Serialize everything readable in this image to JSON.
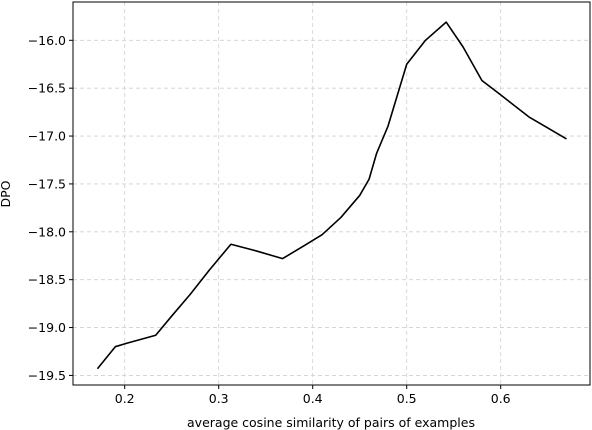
{
  "chart_data": {
    "type": "line",
    "title": "",
    "xlabel": "average cosine similarity of pairs of examples",
    "ylabel": "DPO",
    "xlim": [
      0.145,
      0.695
    ],
    "ylim": [
      -19.6,
      -15.6
    ],
    "grid": true,
    "x_ticks": [
      0.2,
      0.3,
      0.4,
      0.5,
      0.6
    ],
    "x_tick_labels": [
      "0.2",
      "0.3",
      "0.4",
      "0.5",
      "0.6"
    ],
    "y_ticks": [
      -16.0,
      -16.5,
      -17.0,
      -17.5,
      -18.0,
      -18.5,
      -19.0,
      -19.5
    ],
    "y_tick_labels": [
      "−16.0",
      "−16.5",
      "−17.0",
      "−17.5",
      "−18.0",
      "−18.5",
      "−19.0",
      "−19.5"
    ],
    "series": [
      {
        "color": "#000000",
        "x": [
          0.171,
          0.19,
          0.2,
          0.233,
          0.25,
          0.27,
          0.29,
          0.313,
          0.34,
          0.368,
          0.39,
          0.41,
          0.43,
          0.45,
          0.46,
          0.468,
          0.48,
          0.5,
          0.52,
          0.542,
          0.56,
          0.58,
          0.6,
          0.63,
          0.67
        ],
        "y": [
          -19.43,
          -19.2,
          -19.17,
          -19.08,
          -18.88,
          -18.65,
          -18.4,
          -18.13,
          -18.2,
          -18.28,
          -18.15,
          -18.03,
          -17.85,
          -17.62,
          -17.45,
          -17.18,
          -16.9,
          -16.25,
          -16.0,
          -15.81,
          -16.07,
          -16.42,
          -16.57,
          -16.8,
          -17.03
        ]
      }
    ]
  }
}
